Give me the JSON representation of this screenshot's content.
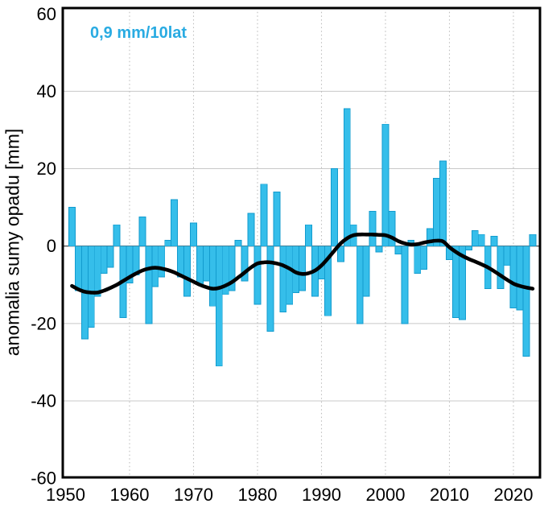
{
  "chart": {
    "annotation": "0,9 mm/10lat",
    "ylabel": "anomalia sumy opadu [mm]"
  },
  "chart_data": {
    "type": "bar",
    "title": "",
    "xlabel": "",
    "ylabel": "anomalia sumy opadu [mm]",
    "annotation": "0,9 mm/10lat",
    "trend_mm_per_decade": 0.9,
    "ylim": [
      -60,
      60
    ],
    "xlim": [
      1949.5,
      2024.2
    ],
    "grid": "horizontal solid, vertical dotted per decade",
    "legend": "none",
    "yticks": [
      60,
      40,
      20,
      0,
      -20,
      -40,
      -60
    ],
    "xticks": [
      1950,
      1960,
      1970,
      1980,
      1990,
      2000,
      2010,
      2020
    ],
    "years": [
      1951,
      1952,
      1953,
      1954,
      1955,
      1956,
      1957,
      1958,
      1959,
      1960,
      1961,
      1962,
      1963,
      1964,
      1965,
      1966,
      1967,
      1968,
      1969,
      1970,
      1971,
      1972,
      1973,
      1974,
      1975,
      1976,
      1977,
      1978,
      1979,
      1980,
      1981,
      1982,
      1983,
      1984,
      1985,
      1986,
      1987,
      1988,
      1989,
      1990,
      1991,
      1992,
      1993,
      1994,
      1995,
      1996,
      1997,
      1998,
      1999,
      2000,
      2001,
      2002,
      2003,
      2004,
      2005,
      2006,
      2007,
      2008,
      2009,
      2010,
      2011,
      2012,
      2013,
      2014,
      2015,
      2016,
      2017,
      2018,
      2019,
      2020,
      2021,
      2022,
      2023
    ],
    "values": [
      10,
      -11.5,
      -24,
      -21,
      -13,
      -7,
      -5.5,
      5.5,
      -18.5,
      -9.5,
      -7.5,
      7.5,
      -20,
      -10.5,
      -8,
      1.5,
      12,
      -8,
      -13,
      6,
      -10,
      -9,
      -15.5,
      -31,
      -12.5,
      -11.5,
      1.5,
      -9,
      8.5,
      -15,
      16,
      -22,
      14,
      -17,
      -15,
      -12,
      -11.5,
      5.5,
      -13,
      -8.5,
      -18,
      20,
      -4,
      35.5,
      5.5,
      -20,
      -13,
      9,
      -1.5,
      31.5,
      9,
      -2,
      -20,
      1.5,
      -7,
      -6,
      4.5,
      17.5,
      22,
      -3.5,
      -18.5,
      -19,
      -1,
      4,
      3,
      -11,
      2.5,
      -11,
      -5,
      -16,
      -16.5,
      -28.5,
      3
    ],
    "smoothed_series": {
      "name": "smoothed-trend-line",
      "points": [
        [
          1951,
          -10.3
        ],
        [
          1952,
          -11.2
        ],
        [
          1953,
          -11.8
        ],
        [
          1954,
          -12
        ],
        [
          1955,
          -12
        ],
        [
          1956,
          -11.5
        ],
        [
          1957,
          -10.8
        ],
        [
          1958,
          -10
        ],
        [
          1959,
          -9
        ],
        [
          1960,
          -8
        ],
        [
          1961,
          -7.1
        ],
        [
          1962,
          -6.3
        ],
        [
          1963,
          -5.8
        ],
        [
          1964,
          -5.6
        ],
        [
          1965,
          -5.8
        ],
        [
          1966,
          -6.2
        ],
        [
          1967,
          -6.8
        ],
        [
          1968,
          -7.6
        ],
        [
          1969,
          -8.4
        ],
        [
          1970,
          -9.2
        ],
        [
          1971,
          -10
        ],
        [
          1972,
          -10.6
        ],
        [
          1973,
          -11
        ],
        [
          1974,
          -10.8
        ],
        [
          1975,
          -10.2
        ],
        [
          1976,
          -9.3
        ],
        [
          1977,
          -8.1
        ],
        [
          1978,
          -6.8
        ],
        [
          1979,
          -5.5
        ],
        [
          1980,
          -4.5
        ],
        [
          1981,
          -4.2
        ],
        [
          1982,
          -4.2
        ],
        [
          1983,
          -4.5
        ],
        [
          1984,
          -5
        ],
        [
          1985,
          -5.8
        ],
        [
          1986,
          -6.8
        ],
        [
          1987,
          -7.2
        ],
        [
          1988,
          -7
        ],
        [
          1989,
          -6.3
        ],
        [
          1990,
          -5
        ],
        [
          1991,
          -3.2
        ],
        [
          1992,
          -1.2
        ],
        [
          1993,
          0.7
        ],
        [
          1994,
          2
        ],
        [
          1995,
          2.8
        ],
        [
          1996,
          3
        ],
        [
          1997,
          3
        ],
        [
          1998,
          3
        ],
        [
          1999,
          2.9
        ],
        [
          2000,
          2.8
        ],
        [
          2001,
          2.2
        ],
        [
          2002,
          1.3
        ],
        [
          2003,
          0.7
        ],
        [
          2004,
          0.4
        ],
        [
          2005,
          0.5
        ],
        [
          2006,
          0.9
        ],
        [
          2007,
          1.2
        ],
        [
          2008,
          1.4
        ],
        [
          2009,
          1.2
        ],
        [
          2010,
          -0.3
        ],
        [
          2011,
          -1.5
        ],
        [
          2012,
          -2.5
        ],
        [
          2013,
          -3.3
        ],
        [
          2014,
          -4
        ],
        [
          2015,
          -4.7
        ],
        [
          2016,
          -5.5
        ],
        [
          2017,
          -6.5
        ],
        [
          2018,
          -7.6
        ],
        [
          2019,
          -8.7
        ],
        [
          2020,
          -9.7
        ],
        [
          2021,
          -10.3
        ],
        [
          2022,
          -10.7
        ],
        [
          2023,
          -11
        ]
      ]
    },
    "colors": {
      "bar_fill": "#35BEEA",
      "bar_stroke": "#129BCE",
      "trend_line": "#000000",
      "annotation_text": "#29ABE2",
      "grid_horizontal": "#c8c8c8",
      "grid_vertical_dotted": "#bdbdbd",
      "zero_line": "#333333",
      "axis_border": "#000000",
      "tick_text": "#000000"
    }
  }
}
